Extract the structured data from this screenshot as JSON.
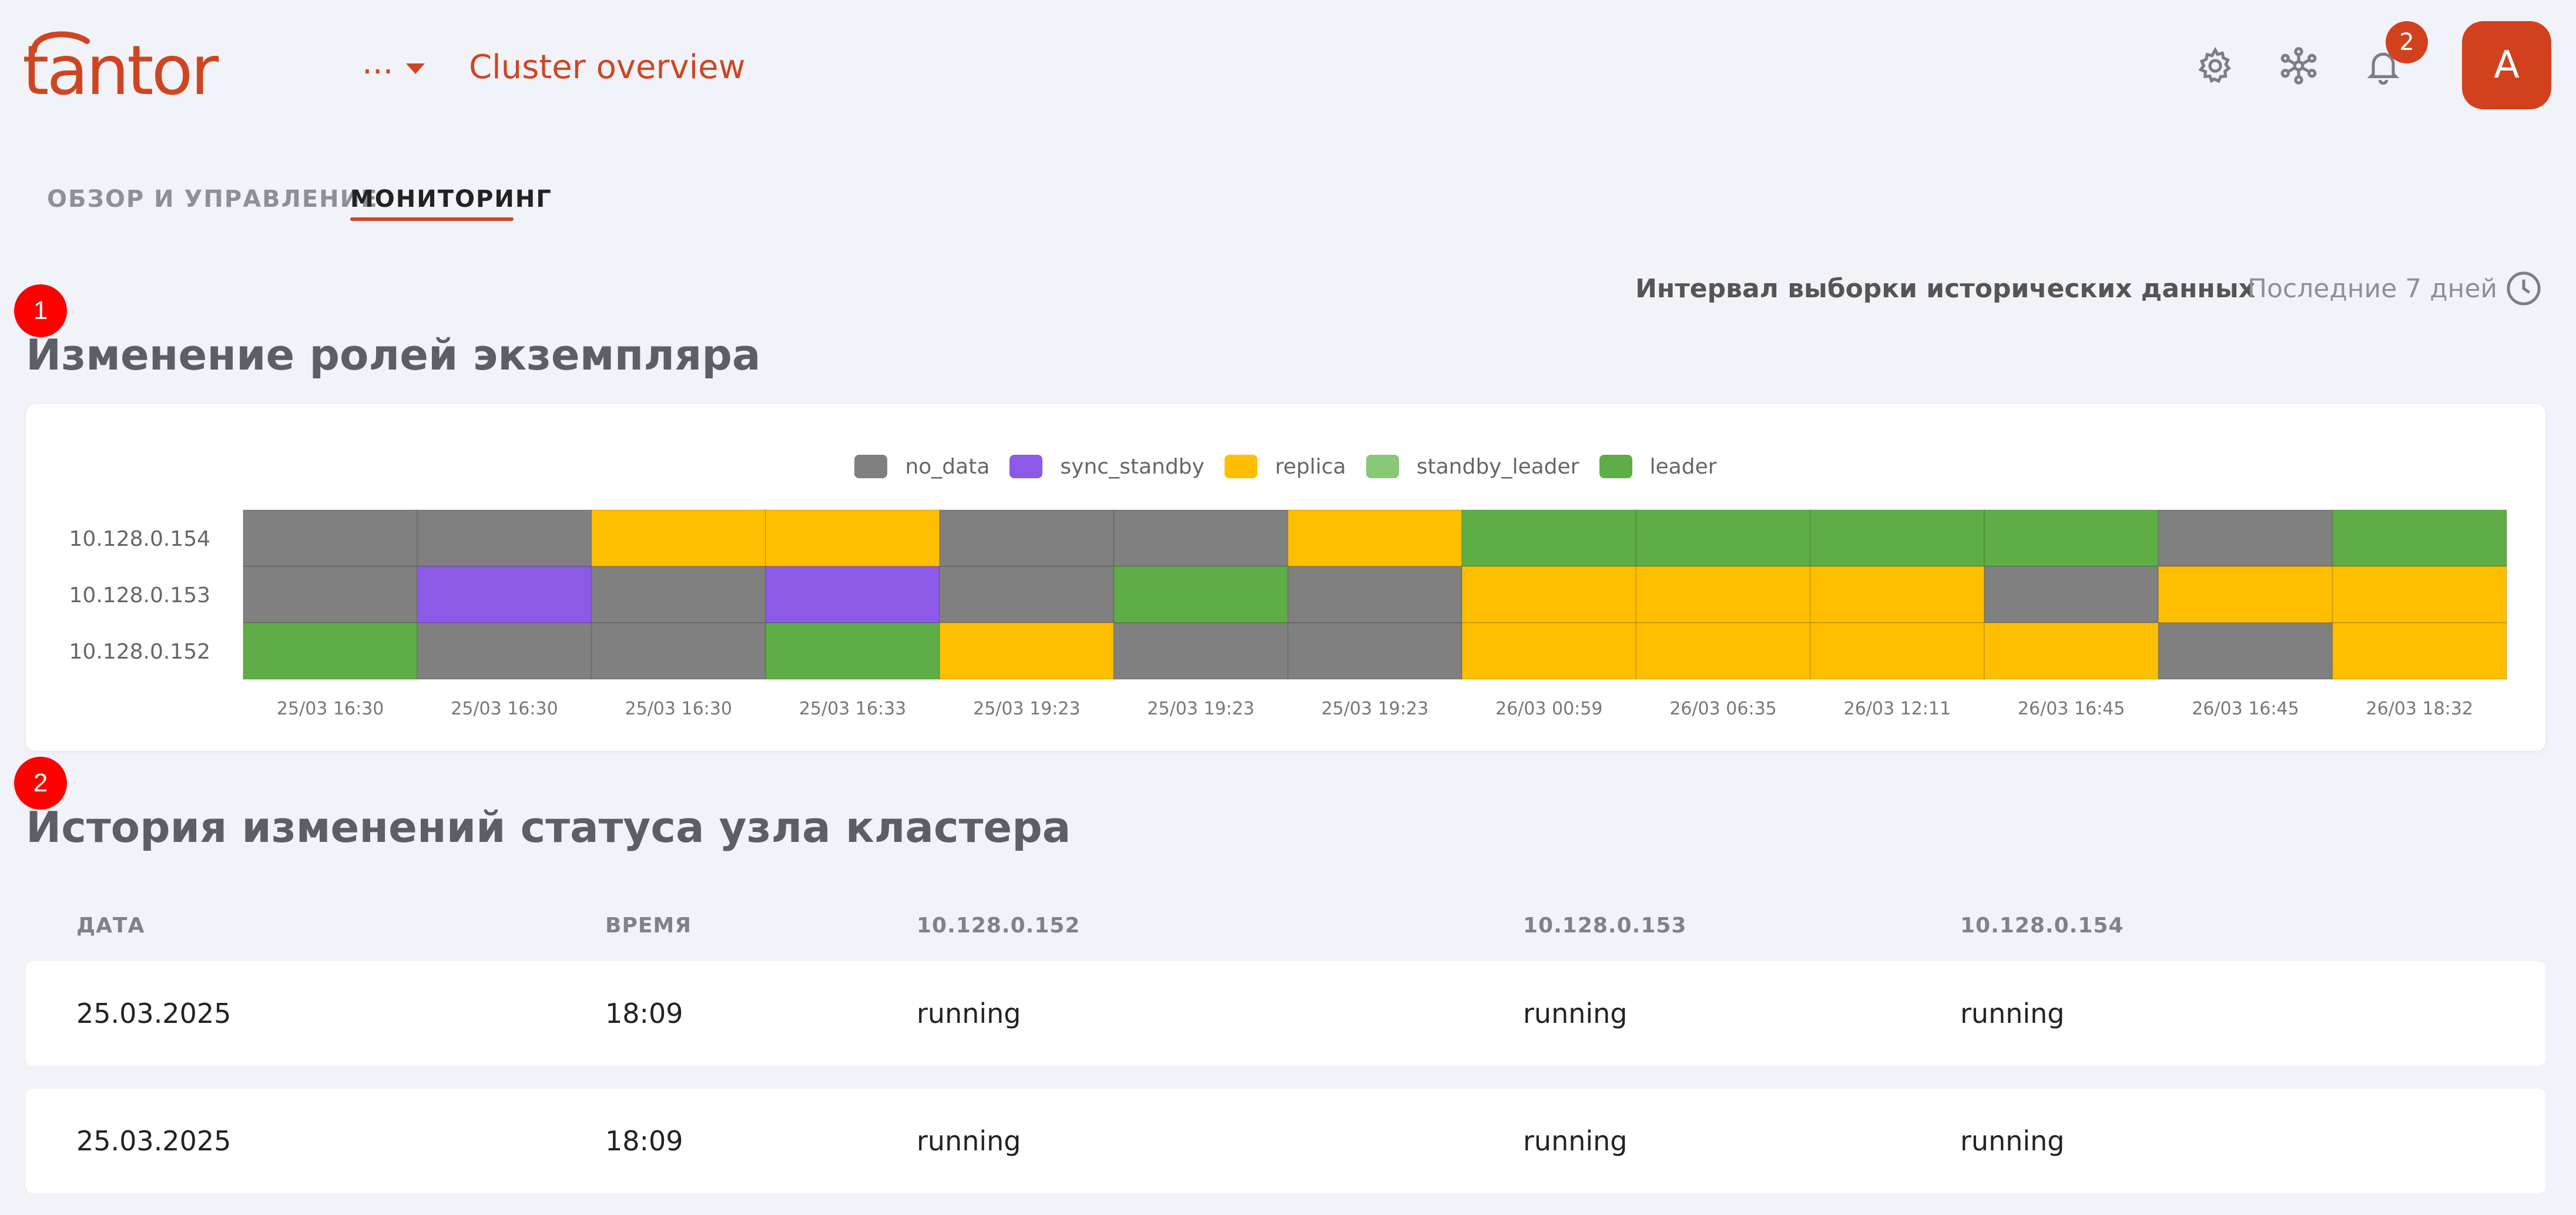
{
  "header": {
    "logo_text": "tantor",
    "menu_dots": "...",
    "title": "Cluster overview",
    "notification_count": "2",
    "avatar_letter": "A"
  },
  "tabs": [
    {
      "label": "ОБЗОР И УПРАВЛЕНИЕ",
      "active": false
    },
    {
      "label": "МОНИТОРИНГ",
      "active": true
    }
  ],
  "interval": {
    "label": "Интервал выборки исторических данных",
    "value": "Последние 7 дней"
  },
  "sections": [
    {
      "marker": "1",
      "title": "Изменение ролей экземпляра"
    },
    {
      "marker": "2",
      "title": "История изменений статуса узла кластера"
    }
  ],
  "colors": {
    "accent": "#cf4521",
    "no_data": "#808080",
    "sync_standby": "#8c5ae6",
    "replica": "#ffbf00",
    "standby_leader": "#88c877",
    "leader": "#5fad46"
  },
  "chart_data": {
    "type": "heatmap",
    "legend": [
      "no_data",
      "sync_standby",
      "replica",
      "standby_leader",
      "leader"
    ],
    "rows": [
      "10.128.0.154",
      "10.128.0.153",
      "10.128.0.152"
    ],
    "columns": [
      "25/03 16:30",
      "25/03 16:30",
      "25/03 16:30",
      "25/03 16:33",
      "25/03 19:23",
      "25/03 19:23",
      "25/03 19:23",
      "26/03 00:59",
      "26/03 06:35",
      "26/03 12:11",
      "26/03 16:45",
      "26/03 16:45",
      "26/03 18:32"
    ],
    "values": [
      [
        "no_data",
        "no_data",
        "replica",
        "replica",
        "no_data",
        "no_data",
        "replica",
        "leader",
        "leader",
        "leader",
        "leader",
        "no_data",
        "leader"
      ],
      [
        "no_data",
        "sync_standby",
        "no_data",
        "sync_standby",
        "no_data",
        "leader",
        "no_data",
        "replica",
        "replica",
        "replica",
        "no_data",
        "replica",
        "replica"
      ],
      [
        "leader",
        "no_data",
        "no_data",
        "leader",
        "replica",
        "no_data",
        "no_data",
        "replica",
        "replica",
        "replica",
        "replica",
        "no_data",
        "replica"
      ]
    ]
  },
  "table": {
    "columns": [
      "ДАТА",
      "ВРЕМЯ",
      "10.128.0.152",
      "10.128.0.153",
      "10.128.0.154"
    ],
    "rows": [
      [
        "25.03.2025",
        "18:09",
        "running",
        "running",
        "running"
      ],
      [
        "25.03.2025",
        "18:09",
        "running",
        "running",
        "running"
      ]
    ]
  }
}
